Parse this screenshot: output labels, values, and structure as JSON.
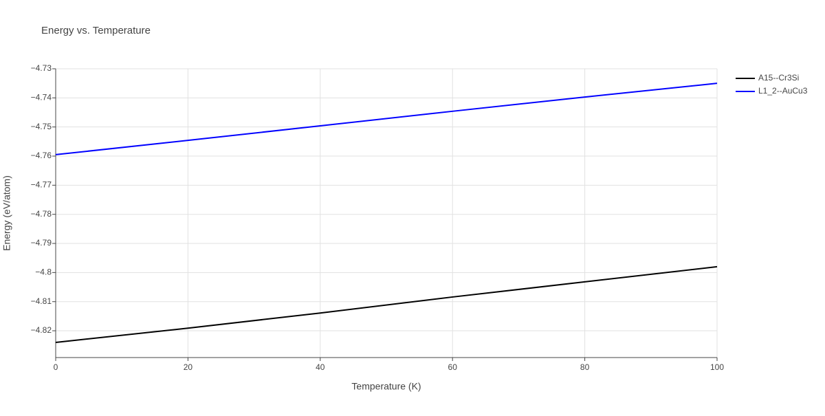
{
  "chart_data": {
    "type": "line",
    "title": "Energy vs. Temperature",
    "x_label": "Temperature (K)",
    "y_label": "Energy (eV/atom)",
    "x": [
      0,
      20,
      40,
      60,
      80,
      100
    ],
    "series": [
      {
        "name": "A15--Cr3Si",
        "color": "#000000",
        "values": [
          -4.824,
          -4.8191,
          -4.8139,
          -4.8084,
          -4.8032,
          -4.798
        ]
      },
      {
        "name": "L1_2--AuCu3",
        "color": "#0000ff",
        "values": [
          -4.7595,
          -4.7546,
          -4.7496,
          -4.7446,
          -4.7397,
          -4.735
        ]
      }
    ],
    "xlim": [
      0,
      100
    ],
    "xticks": [
      0,
      20,
      40,
      60,
      80,
      100
    ],
    "ylim": [
      -4.8292,
      -4.73
    ],
    "yticks": [
      {
        "value": -4.82,
        "label": "−4.82"
      },
      {
        "value": -4.81,
        "label": "−4.81"
      },
      {
        "value": -4.8,
        "label": "−4.8"
      },
      {
        "value": -4.79,
        "label": "−4.79"
      },
      {
        "value": -4.78,
        "label": "−4.78"
      },
      {
        "value": -4.77,
        "label": "−4.77"
      },
      {
        "value": -4.76,
        "label": "−4.76"
      },
      {
        "value": -4.75,
        "label": "−4.75"
      },
      {
        "value": -4.74,
        "label": "−4.74"
      },
      {
        "value": -4.73,
        "label": "−4.73"
      }
    ],
    "grid": true,
    "legend": "right"
  }
}
